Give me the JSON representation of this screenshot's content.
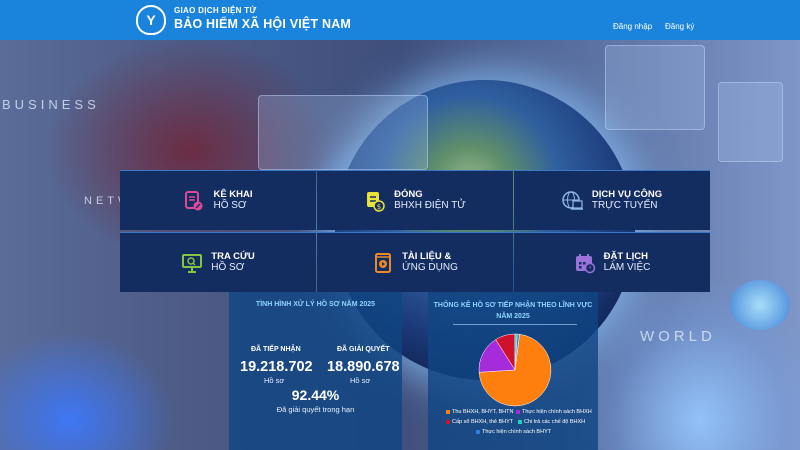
{
  "header": {
    "logo_alt": "BHXH logo",
    "subtitle": "GIAO DỊCH ĐIỆN TỬ",
    "title": "BẢO HIỂM XÃ HỘI VIỆT NAM",
    "login_label": "Đăng nhập",
    "register_label": "Đăng ký",
    "bg_color": "#1a84dd"
  },
  "background": {
    "texts": [
      "BUSINESS",
      "NETW",
      "WORLD"
    ]
  },
  "services": [
    {
      "line1": "KÊ KHAI",
      "line2": "HỒ SƠ",
      "icon": "form-edit-icon",
      "color": "#e0489a"
    },
    {
      "line1": "ĐÓNG",
      "line2": "BHXH ĐIỆN TỬ",
      "icon": "payment-doc-icon",
      "color": "#e8e23a"
    },
    {
      "line1": "DỊCH VỤ CÔNG",
      "line2": "TRỰC TUYẾN",
      "icon": "globe-laptop-icon",
      "color": "#8fb7e8"
    },
    {
      "line1": "TRA CỨU",
      "line2": "HỒ SƠ",
      "icon": "monitor-search-icon",
      "color": "#86c540"
    },
    {
      "line1": "TÀI LIỆU &",
      "line2": "ỨNG DỤNG",
      "icon": "book-play-icon",
      "color": "#e88a2a"
    },
    {
      "line1": "ĐẶT LỊCH",
      "line2": "LÀM VIỆC",
      "icon": "calendar-clock-icon",
      "color": "#9a72d8"
    }
  ],
  "stats": {
    "title": "TÌNH HÌNH XỬ LÝ HỒ SƠ NĂM 2025",
    "received_label": "ĐÃ TIẾP NHẬN",
    "received_value": "19.218.702",
    "received_unit": "Hồ sơ",
    "resolved_label": "ĐÃ GIẢI QUYẾT",
    "resolved_value": "18.890.678",
    "resolved_unit": "Hồ sơ",
    "on_time_pct": "92.44%",
    "on_time_label": "Đã giải quyết trong hạn"
  },
  "chart_panel": {
    "title_line1": "THỐNG KÊ HỒ SƠ TIẾP NHẬN THEO LĨNH VỰC",
    "title_line2": "NĂM 2025"
  },
  "chart_data": {
    "type": "pie",
    "title": "THỐNG KÊ HỒ SƠ TIẾP NHẬN THEO LĨNH VỰC NĂM 2025",
    "categories": [
      "Thu BHXH, BHYT, BHTN",
      "Thực hiện chính sách BHXH",
      "Cấp sổ BHXH, thẻ BHYT",
      "Chi trả các chế độ BHXH",
      "Thực hiện chính sách BHYT"
    ],
    "values": [
      72,
      17,
      9,
      1,
      1
    ],
    "colors": [
      "#ff7f0e",
      "#a52bdb",
      "#d0112b",
      "#1fd1c4",
      "#2f7fe0"
    ],
    "legend_position": "bottom"
  }
}
